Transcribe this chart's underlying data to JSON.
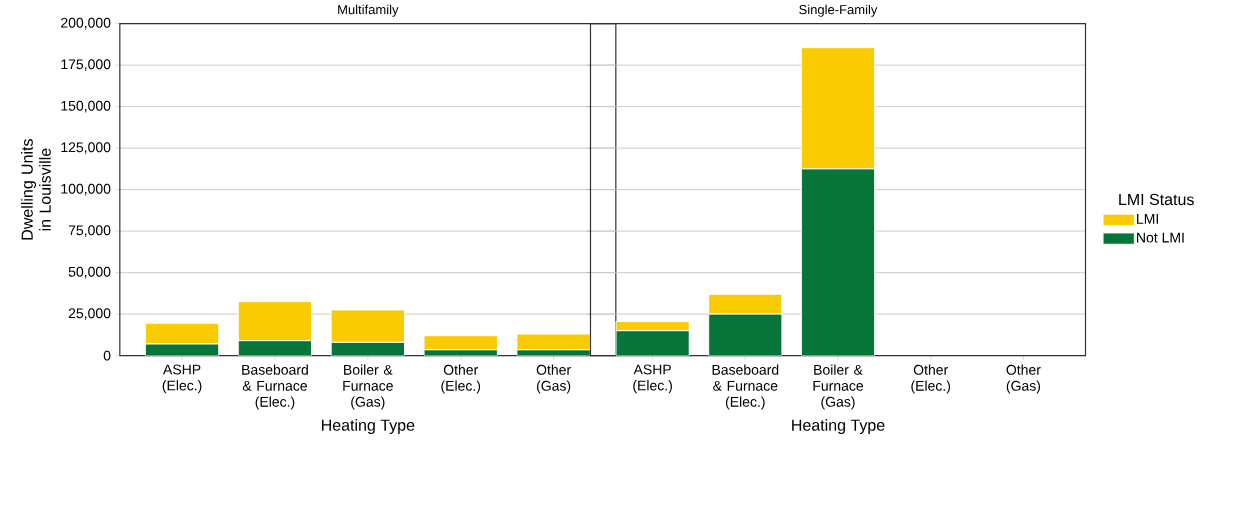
{
  "chart_data": [
    {
      "type": "bar",
      "title": "Multifamily",
      "xlabel": "Heating Type",
      "ylabel": "Dwelling Units in Louisville",
      "stacked": true,
      "categories": [
        "ASHP (Elec.)",
        "Baseboard & Furnace (Elec.)",
        "Boiler & Furnace (Gas)",
        "Other (Elec.)",
        "Other (Gas)"
      ],
      "series": [
        {
          "color": "#07753a",
          "values": [
            7000,
            9000,
            8000,
            3500,
            3500
          ]
        },
        {
          "color": "#facb00",
          "values": [
            12500,
            23500,
            19500,
            8500,
            9500
          ]
        }
      ],
      "ylim": [
        0,
        200000
      ],
      "yticks": [
        {
          "value": 0,
          "label": "0"
        },
        {
          "value": 25000,
          "label": "25,000"
        },
        {
          "value": 50000,
          "label": "50,000"
        },
        {
          "value": 75000,
          "label": "75,000"
        },
        {
          "value": 100000,
          "label": "100,000"
        },
        {
          "value": 125000,
          "label": "125,000"
        },
        {
          "value": 150000,
          "label": "150,000"
        },
        {
          "value": 175000,
          "label": "175,000"
        },
        {
          "value": 200000,
          "label": "200,000"
        }
      ],
      "grid": "y"
    },
    {
      "type": "bar",
      "title": "Single-Family",
      "xlabel": "Heating Type",
      "stacked": true,
      "categories": [
        "ASHP (Elec.)",
        "Baseboard & Furnace (Elec.)",
        "Boiler & Furnace (Gas)",
        "Other (Elec.)",
        "Other (Gas)"
      ],
      "series": [
        {
          "name": "Not LMI",
          "color": "#07753a",
          "values": [
            15000,
            25000,
            112500,
            0,
            0
          ]
        },
        {
          "name": "LMI",
          "color": "#facb00",
          "values": [
            5500,
            12000,
            73000,
            0,
            0
          ]
        }
      ],
      "ylim": [
        0,
        200000
      ],
      "yticks": [
        {
          "value": 0,
          "label": null
        },
        {
          "value": 25000,
          "label": null
        },
        {
          "value": 50000,
          "label": null
        },
        {
          "value": 75000,
          "label": null
        },
        {
          "value": 100000,
          "label": null
        },
        {
          "value": 125000,
          "label": null
        },
        {
          "value": 150000,
          "label": null
        },
        {
          "value": 175000,
          "label": null
        },
        {
          "value": 200000,
          "label": null
        }
      ],
      "tick_labels": "x",
      "grid": "y",
      "legend": "right",
      "legend_title": "LMI Status"
    }
  ]
}
